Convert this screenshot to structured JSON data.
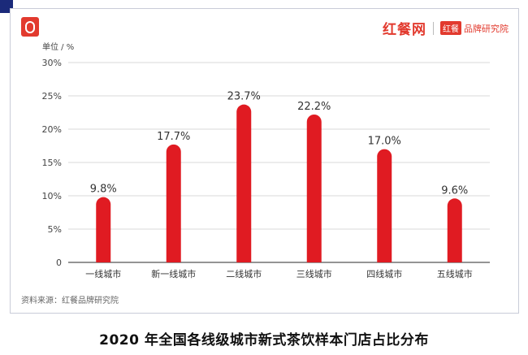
{
  "brand": {
    "name": "红餐网",
    "sub_badge": "红餐",
    "sub_name": "品牌研究院"
  },
  "source_note": "资料来源：红餐品牌研究院",
  "caption": "2020 年全国各线级城市新式茶饮样本门店占比分布",
  "colors": {
    "bar": "#e01b22",
    "accent": "#e23a2e",
    "grid": "#d9d9d9",
    "axis": "#555555"
  },
  "chart_data": {
    "type": "bar",
    "categories": [
      "一线城市",
      "新一线城市",
      "二线城市",
      "三线城市",
      "四线城市",
      "五线城市"
    ],
    "values": [
      9.8,
      17.7,
      23.7,
      22.2,
      17.0,
      9.6
    ],
    "value_labels": [
      "9.8%",
      "17.7%",
      "23.7%",
      "22.2%",
      "17.0%",
      "9.6%"
    ],
    "ylabel": "单位 / %",
    "ylim": [
      0,
      30
    ],
    "yticks": [
      0,
      5,
      10,
      15,
      20,
      25,
      30
    ],
    "ytick_labels": [
      "0",
      "5%",
      "10%",
      "15%",
      "20%",
      "25%",
      "30%"
    ],
    "grid": true,
    "legend": "none"
  }
}
